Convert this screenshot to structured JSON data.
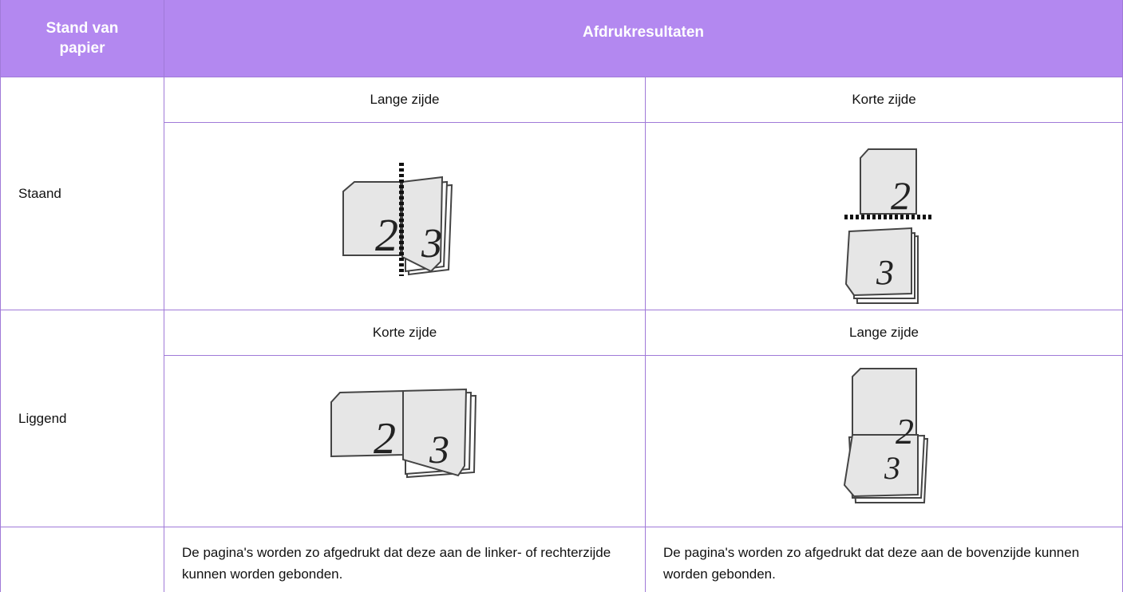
{
  "header": {
    "orientation": "Stand van papier",
    "results": "Afdrukresultaten"
  },
  "rows": [
    {
      "orientation": "Staand",
      "options": [
        {
          "binding": "Lange zijde",
          "pages": [
            "2",
            "3"
          ]
        },
        {
          "binding": "Korte zijde",
          "pages": [
            "2",
            "3"
          ]
        }
      ]
    },
    {
      "orientation": "Liggend",
      "options": [
        {
          "binding": "Korte zijde",
          "pages": [
            "2",
            "3"
          ]
        },
        {
          "binding": "Lange zijde",
          "pages": [
            "2",
            "3"
          ]
        }
      ]
    }
  ],
  "descriptions": [
    "De pagina's worden zo afgedrukt dat deze aan de linker- of rechterzijde kunnen worden gebonden.",
    "De pagina's worden zo afgedrukt dat deze aan de bovenzijde kunnen worden gebonden."
  ]
}
